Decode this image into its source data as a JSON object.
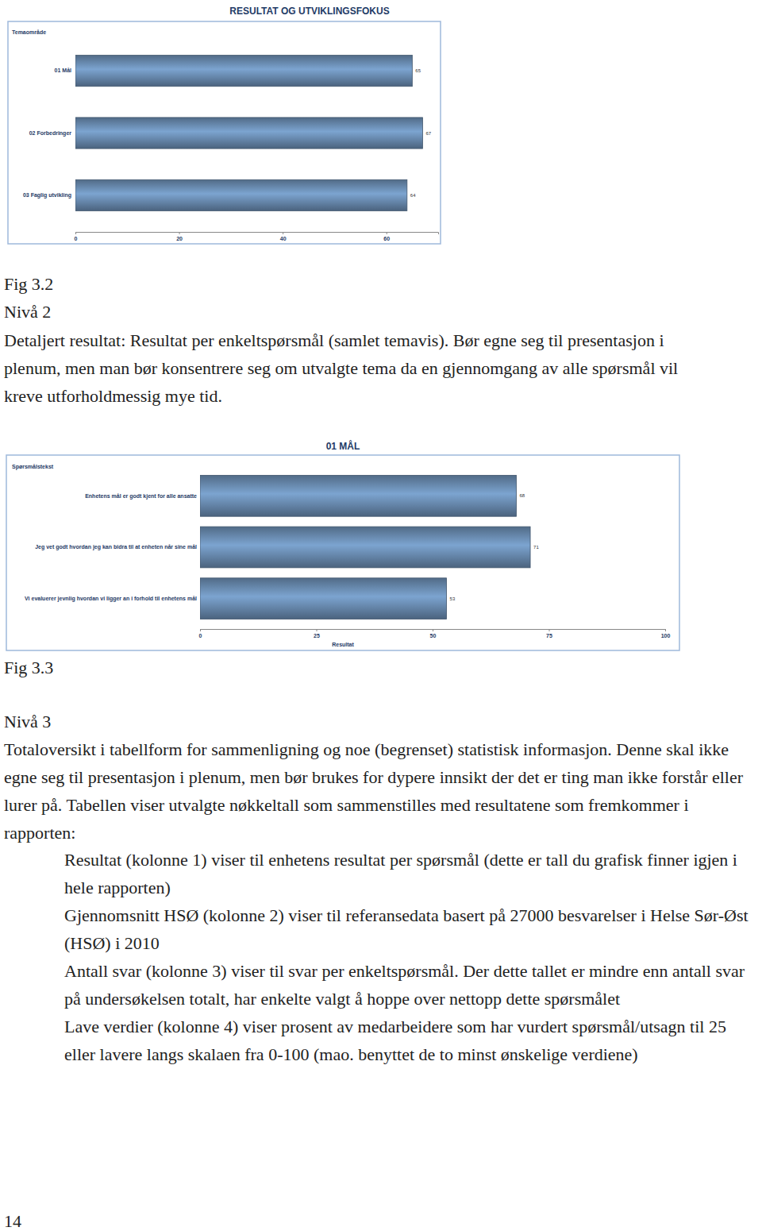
{
  "chart_data": [
    {
      "type": "bar",
      "title": "RESULTAT OG UTVIKLINGSFOKUS",
      "ylabel": "Temaområde",
      "categories": [
        "01 Mål",
        "02 Forbedringer",
        "03 Faglig utvikling"
      ],
      "values": [
        65,
        67,
        64
      ],
      "orientation": "horizontal",
      "data_labels": true,
      "grid": false,
      "color": "#5d7b9c",
      "xlim": [
        0,
        70
      ],
      "xticks": [
        0,
        20,
        40,
        60
      ]
    },
    {
      "type": "bar",
      "title": "01 MÅL",
      "ylabel": "Spørsmålstekst",
      "xlabel": "Resultat",
      "categories": [
        "Enhetens mål er godt kjent for alle ansatte",
        "Jeg vet godt hvordan jeg kan bidra til at enheten når sine mål",
        "Vi evaluerer jevnlig hvordan vi ligger an i forhold til enhetens mål"
      ],
      "values": [
        68,
        71,
        53
      ],
      "orientation": "horizontal",
      "data_labels": true,
      "grid": false,
      "color": "#5d7b9c",
      "xlim": [
        0,
        100
      ],
      "xticks": [
        0,
        25,
        50,
        75,
        100
      ]
    }
  ],
  "document": {
    "sections": [
      {
        "figure": "Fig 3.2",
        "heading": "Nivå 2",
        "paragraphs": [
          "Detaljert resultat: Resultat per enkeltspørsmål (samlet temavis). Bør egne seg til presentasjon i plenum, men man bør konsentrere seg om utvalgte tema da en gjennomgang av alle spørsmål vil kreve utforholdmessig mye tid."
        ],
        "list": []
      },
      {
        "figure": "Fig 3.3",
        "heading": "Nivå 3",
        "paragraphs": [
          "Totaloversikt i tabellform for sammenligning og noe (begrenset) statistisk informasjon. Denne skal ikke egne seg til presentasjon i plenum, men bør brukes for dypere innsikt der det er ting man ikke forstår eller lurer på. Tabellen viser utvalgte nøkkeltall som sammenstilles med resultatene som fremkommer i rapporten:"
        ],
        "list": [
          "Resultat (kolonne 1) viser til enhetens resultat per spørsmål (dette er tall du grafisk finner igjen i hele rapporten)",
          "Gjennomsnitt HSØ (kolonne 2) viser til referansedata basert på 27000 besvarelser i Helse Sør-Øst (HSØ) i 2010",
          "Antall svar (kolonne 3) viser til svar per enkeltspørsmål. Der dette tallet er mindre enn antall svar på undersøkelsen totalt, har enkelte valgt å hoppe over nettopp dette spørsmålet",
          "Lave verdier (kolonne 4) viser prosent av medarbeidere som har vurdert spørsmål/utsagn til 25 eller lavere langs skalaen fra 0-100 (mao. benyttet de to minst ønskelige verdiene)"
        ]
      }
    ],
    "page_number": 14
  }
}
